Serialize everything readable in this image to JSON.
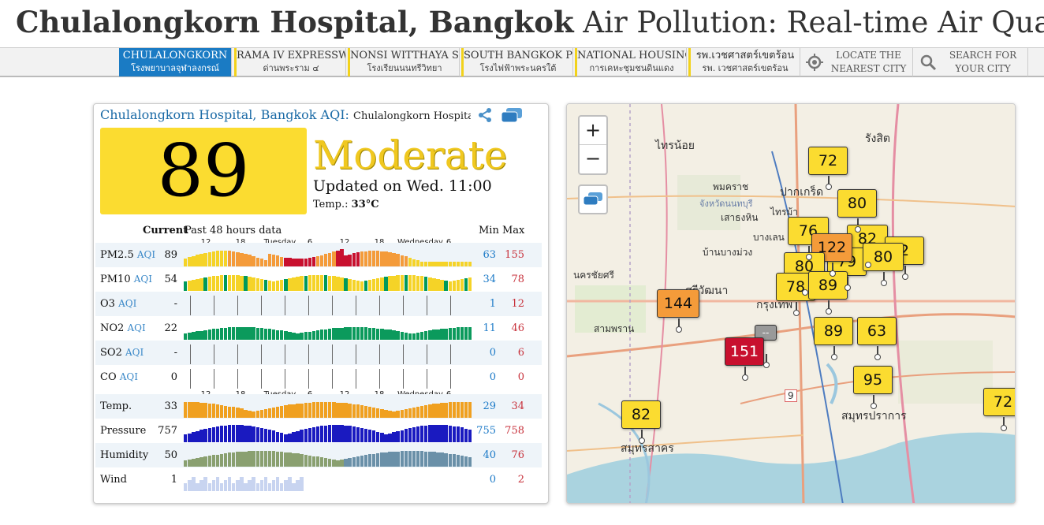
{
  "header": {
    "title_bold": "Chulalongkorn Hospital, Bangkok",
    "title_rest": " Air Pollution: Real-time Air Quality Index"
  },
  "nav": {
    "stations": [
      {
        "line1": "CHULALONGKORN",
        "line2": "โรงพยาบาลจุฬาลงกรณ์"
      },
      {
        "line1": "RAMA IV EXPRESSWAY",
        "line2": "ด่านพระราม ๔"
      },
      {
        "line1": "NONSI WITTHAYA SCHOOL",
        "line2": "โรงเรียนนนทรีวิทยา"
      },
      {
        "line1": "SOUTH BANGKOK POWER",
        "line2": "โรงไฟฟ้าพระนครใต้"
      },
      {
        "line1": "NATIONAL HOUSING",
        "line2": "การเคหะชุมชนดินแดง"
      },
      {
        "line1": "รพ.เวชศาสตร์เขตร้อน",
        "line2": "รพ. เวชศาสตร์เขตร้อน"
      }
    ],
    "locate": "LOCATE THE NEAREST CITY",
    "search": "SEARCH FOR YOUR CITY",
    "locate_icon": "target-icon",
    "search_icon": "search-icon"
  },
  "panel": {
    "station_title": "Chulalongkorn Hospital, Bangkok AQI",
    "station_sub": "Chulalongkorn Hospital",
    "aqi": "89",
    "level": "Moderate",
    "updated": "Updated on Wed. 11:00",
    "temp_label": "Temp.:",
    "temp_value": "33°C",
    "col_current": "Current",
    "col_past": "Past 48 hours data",
    "col_min": "Min",
    "col_max": "Max",
    "hour_labels": [
      "12",
      "18",
      "Tuesday",
      "6",
      "12",
      "18",
      "Wednesday",
      "6"
    ],
    "aqi_suffix": "AQI",
    "rows": [
      {
        "name": "PM2.5",
        "aqi": true,
        "current": "89",
        "min": "63",
        "max": "155"
      },
      {
        "name": "PM10",
        "aqi": true,
        "current": "54",
        "min": "34",
        "max": "78"
      },
      {
        "name": "O3",
        "aqi": true,
        "current": "-",
        "min": "1",
        "max": "12"
      },
      {
        "name": "NO2",
        "aqi": true,
        "current": "22",
        "min": "11",
        "max": "46"
      },
      {
        "name": "SO2",
        "aqi": true,
        "current": "-",
        "min": "0",
        "max": "6"
      },
      {
        "name": "CO",
        "aqi": true,
        "current": "0",
        "min": "0",
        "max": "0"
      },
      {
        "name": "Temp.",
        "aqi": false,
        "current": "33",
        "min": "29",
        "max": "34"
      },
      {
        "name": "Pressure",
        "aqi": false,
        "current": "757",
        "min": "755",
        "max": "758"
      },
      {
        "name": "Humidity",
        "aqi": false,
        "current": "50",
        "min": "40",
        "max": "76"
      },
      {
        "name": "Wind",
        "aqi": false,
        "current": "1",
        "min": "0",
        "max": "2"
      }
    ]
  },
  "map": {
    "zoom_in": "+",
    "zoom_out": "−",
    "markers": [
      "72",
      "80",
      "76",
      "82",
      "122",
      "80",
      "2",
      "80",
      "79",
      "78",
      "89",
      "144",
      "89",
      "63",
      "151",
      "95",
      "82",
      "72",
      "--"
    ],
    "labels": [
      "ไทรน้อย",
      "รังสิต",
      "ปากเกร็ด",
      "พมคราช",
      "จังหวัดนนทบุรี",
      "เสาธงหิน",
      "ไทรม้า",
      "บางเลน",
      "บ้านบางม่วง",
      "นครชัยศรี",
      "ศรีวัฒนา",
      "สามพราน",
      "กรุงเทพ",
      "สมุทรสาคร",
      "สมุทรปราการ",
      "9"
    ]
  },
  "colors": {
    "good": "#009966",
    "moderate": "#ffde33",
    "usg": "#ff9933",
    "unhealthy": "#cc0033",
    "accent": "#1a7bc4"
  }
}
